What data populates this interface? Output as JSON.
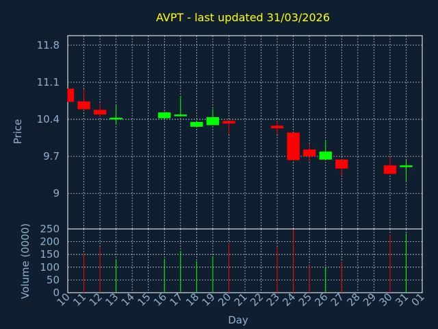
{
  "chart_data": {
    "type": "candlestick",
    "title": "AVPT - last updated 31/03/2026",
    "xlabel": "Day",
    "ylabel_price": "Price",
    "ylabel_volume": "Volume (0000)",
    "x_ticks": [
      "10",
      "11",
      "12",
      "13",
      "14",
      "15",
      "16",
      "17",
      "18",
      "19",
      "20",
      "21",
      "22",
      "23",
      "24",
      "25",
      "26",
      "27",
      "28",
      "29",
      "30",
      "31",
      "01"
    ],
    "price_ticks": [
      9,
      9.7,
      10.4,
      11.1,
      11.8
    ],
    "price_tick_labels": [
      "9",
      "9.7",
      "10.4",
      "11.1",
      "11.8"
    ],
    "price_range": [
      8.33,
      11.98
    ],
    "volume_ticks": [
      0,
      50,
      100,
      150,
      200,
      250
    ],
    "volume_range": [
      0,
      250
    ],
    "grid": true,
    "colors": {
      "up": "#00ff00",
      "down": "#ff0000",
      "background": "#0f1f30",
      "text": "#8fb0cc",
      "title": "#ffff00"
    },
    "candles": [
      {
        "day": "10",
        "open": 10.98,
        "high": 10.98,
        "low": 10.73,
        "close": 10.73,
        "volume": 0
      },
      {
        "day": "11",
        "open": 10.74,
        "high": 10.97,
        "low": 10.57,
        "close": 10.59,
        "volume": 155
      },
      {
        "day": "12",
        "open": 10.58,
        "high": 10.7,
        "low": 10.46,
        "close": 10.49,
        "volume": 178
      },
      {
        "day": "13",
        "open": 10.4,
        "high": 10.66,
        "low": 10.31,
        "close": 10.43,
        "volume": 128
      },
      {
        "day": "16",
        "open": 10.42,
        "high": 10.54,
        "low": 10.42,
        "close": 10.53,
        "volume": 133
      },
      {
        "day": "17",
        "open": 10.48,
        "high": 10.84,
        "low": 10.48,
        "close": 10.49,
        "volume": 163
      },
      {
        "day": "18",
        "open": 10.26,
        "high": 10.36,
        "low": 10.26,
        "close": 10.35,
        "volume": 124
      },
      {
        "day": "19",
        "open": 10.29,
        "high": 10.6,
        "low": 10.29,
        "close": 10.44,
        "volume": 144
      },
      {
        "day": "20",
        "open": 10.37,
        "high": 10.37,
        "low": 10.12,
        "close": 10.32,
        "volume": 195
      },
      {
        "day": "23",
        "open": 10.28,
        "high": 10.37,
        "low": 10.12,
        "close": 10.23,
        "volume": 178
      },
      {
        "day": "24",
        "open": 10.15,
        "high": 10.15,
        "low": 9.62,
        "close": 9.63,
        "volume": 248
      },
      {
        "day": "25",
        "open": 9.83,
        "high": 9.93,
        "low": 9.61,
        "close": 9.7,
        "volume": 108
      },
      {
        "day": "26",
        "open": 9.64,
        "high": 10.0,
        "low": 9.64,
        "close": 9.79,
        "volume": 100
      },
      {
        "day": "27",
        "open": 9.64,
        "high": 9.64,
        "low": 9.33,
        "close": 9.47,
        "volume": 120
      },
      {
        "day": "30",
        "open": 9.53,
        "high": 9.69,
        "low": 9.36,
        "close": 9.37,
        "volume": 228
      },
      {
        "day": "31",
        "open": 9.5,
        "high": 9.63,
        "low": 9.23,
        "close": 9.53,
        "volume": 232
      }
    ]
  }
}
